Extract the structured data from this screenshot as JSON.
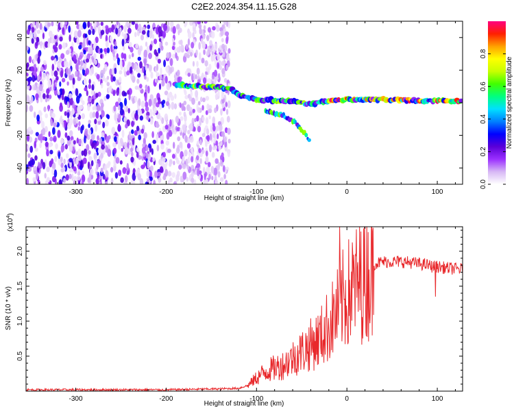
{
  "title": "C2E2.2024.354.11.15.G28",
  "colors": {
    "snr_line": "#e8282b",
    "colorbar_stops": [
      "#ffffff",
      "#d7b8f5",
      "#9b30ff",
      "#5a00d8",
      "#0000ff",
      "#0080ff",
      "#00e0ff",
      "#00ff80",
      "#40ff00",
      "#c8ff00",
      "#ffff00",
      "#ffa000",
      "#ff2000",
      "#ff0080"
    ]
  },
  "chart_data": [
    {
      "type": "heatmap",
      "name": "spectrogram",
      "xlabel": "Height of straight line (km)",
      "ylabel": "Frequency (Hz)",
      "xlim": [
        -355,
        128
      ],
      "ylim": [
        -50,
        50
      ],
      "xticks": [
        -300,
        -200,
        -100,
        0,
        100
      ],
      "yticks": [
        -40,
        -20,
        0,
        20,
        40
      ],
      "colorbar": {
        "label": "Normalized spectral amplitude",
        "range": [
          0,
          1
        ],
        "ticks": [
          0.0,
          0.2,
          0.4,
          0.6,
          0.8
        ]
      },
      "features": [
        {
          "name": "noise region",
          "x_range": [
            -355,
            -130
          ],
          "freq_range": [
            -50,
            50
          ],
          "amplitude": 0.1
        },
        {
          "name": "signal trace",
          "points": [
            [
              -190,
              11
            ],
            [
              -160,
              10
            ],
            [
              -130,
              9
            ],
            [
              -120,
              5
            ],
            [
              -100,
              2
            ],
            [
              -60,
              1
            ],
            [
              -40,
              -1
            ],
            [
              -20,
              1
            ],
            [
              0,
              2
            ],
            [
              50,
              2
            ],
            [
              100,
              1
            ],
            [
              128,
              1
            ]
          ]
        },
        {
          "name": "descending branch",
          "points": [
            [
              -90,
              -5
            ],
            [
              -70,
              -8
            ],
            [
              -55,
              -13
            ],
            [
              -45,
              -20
            ],
            [
              -40,
              -24
            ]
          ]
        }
      ]
    },
    {
      "type": "line",
      "name": "snr",
      "xlabel": "Height of straight line (km)",
      "ylabel": "SNR (10 * v/v)",
      "multiplier": "(x10",
      "multiplier_exp": "4",
      "multiplier_close": ")",
      "xlim": [
        -355,
        128
      ],
      "ylim": [
        0,
        2.35
      ],
      "xticks": [
        -300,
        -200,
        -100,
        0,
        100
      ],
      "yticks": [
        0.5,
        1.0,
        1.5,
        2.0
      ],
      "ytick_labels": [
        "0.5",
        "1.0",
        "1.5",
        "2.0"
      ],
      "series": [
        {
          "name": "SNR",
          "x": [
            -355,
            -300,
            -250,
            -200,
            -150,
            -120,
            -110,
            -100,
            -90,
            -80,
            -70,
            -60,
            -50,
            -40,
            -30,
            -20,
            -15,
            -10,
            -5,
            0,
            10,
            20,
            30,
            40,
            50,
            60,
            70,
            80,
            90,
            95,
            100,
            110,
            128
          ],
          "y": [
            0.02,
            0.02,
            0.02,
            0.02,
            0.03,
            0.04,
            0.08,
            0.2,
            0.3,
            0.35,
            0.4,
            0.5,
            0.6,
            0.7,
            0.8,
            1.0,
            1.1,
            1.2,
            1.35,
            1.45,
            1.6,
            1.72,
            1.82,
            1.85,
            1.85,
            1.85,
            1.84,
            1.82,
            1.8,
            1.78,
            1.78,
            1.76,
            1.74
          ]
        }
      ]
    }
  ]
}
